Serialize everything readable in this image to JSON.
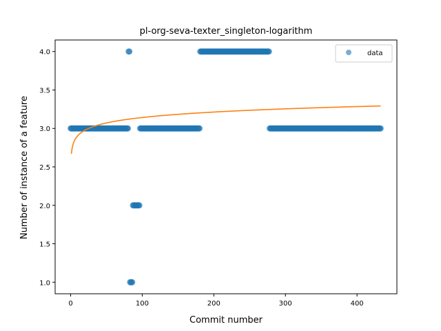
{
  "chart_data": {
    "type": "scatter",
    "title": "pl-org-seva-texter_singleton-logarithm",
    "xlabel": "Commit number",
    "ylabel": "Number of instance of a feature",
    "xlim": [
      -21.7,
      455.7
    ],
    "ylim": [
      0.85,
      4.15
    ],
    "x_ticks": [
      0,
      100,
      200,
      300,
      400
    ],
    "y_ticks": [
      1.0,
      1.5,
      2.0,
      2.5,
      3.0,
      3.5,
      4.0
    ],
    "x_tick_labels": [
      "0",
      "100",
      "200",
      "300",
      "400"
    ],
    "y_tick_labels": [
      "1.0",
      "1.5",
      "2.0",
      "2.5",
      "3.0",
      "3.5",
      "4.0"
    ],
    "grid": false,
    "legend_position": "top-right",
    "colors": {
      "data": "#1f77b4",
      "fit": "#ff7f0e"
    },
    "series": [
      {
        "name": "data",
        "kind": "scatter",
        "segments": [
          {
            "x_start": 0,
            "x_end": 80,
            "y": 3.0
          },
          {
            "x_start": 81,
            "x_end": 82,
            "y": 4.0
          },
          {
            "x_start": 83,
            "x_end": 86,
            "y": 1.0
          },
          {
            "x_start": 87,
            "x_end": 96,
            "y": 2.0
          },
          {
            "x_start": 97,
            "x_end": 180,
            "y": 3.0
          },
          {
            "x_start": 181,
            "x_end": 277,
            "y": 4.0
          },
          {
            "x_start": 278,
            "x_end": 433,
            "y": 3.0
          }
        ]
      },
      {
        "kind": "line",
        "model": "logarithmic",
        "a": 2.67,
        "b": 0.1025,
        "x_range": [
          1,
          433
        ]
      }
    ]
  }
}
